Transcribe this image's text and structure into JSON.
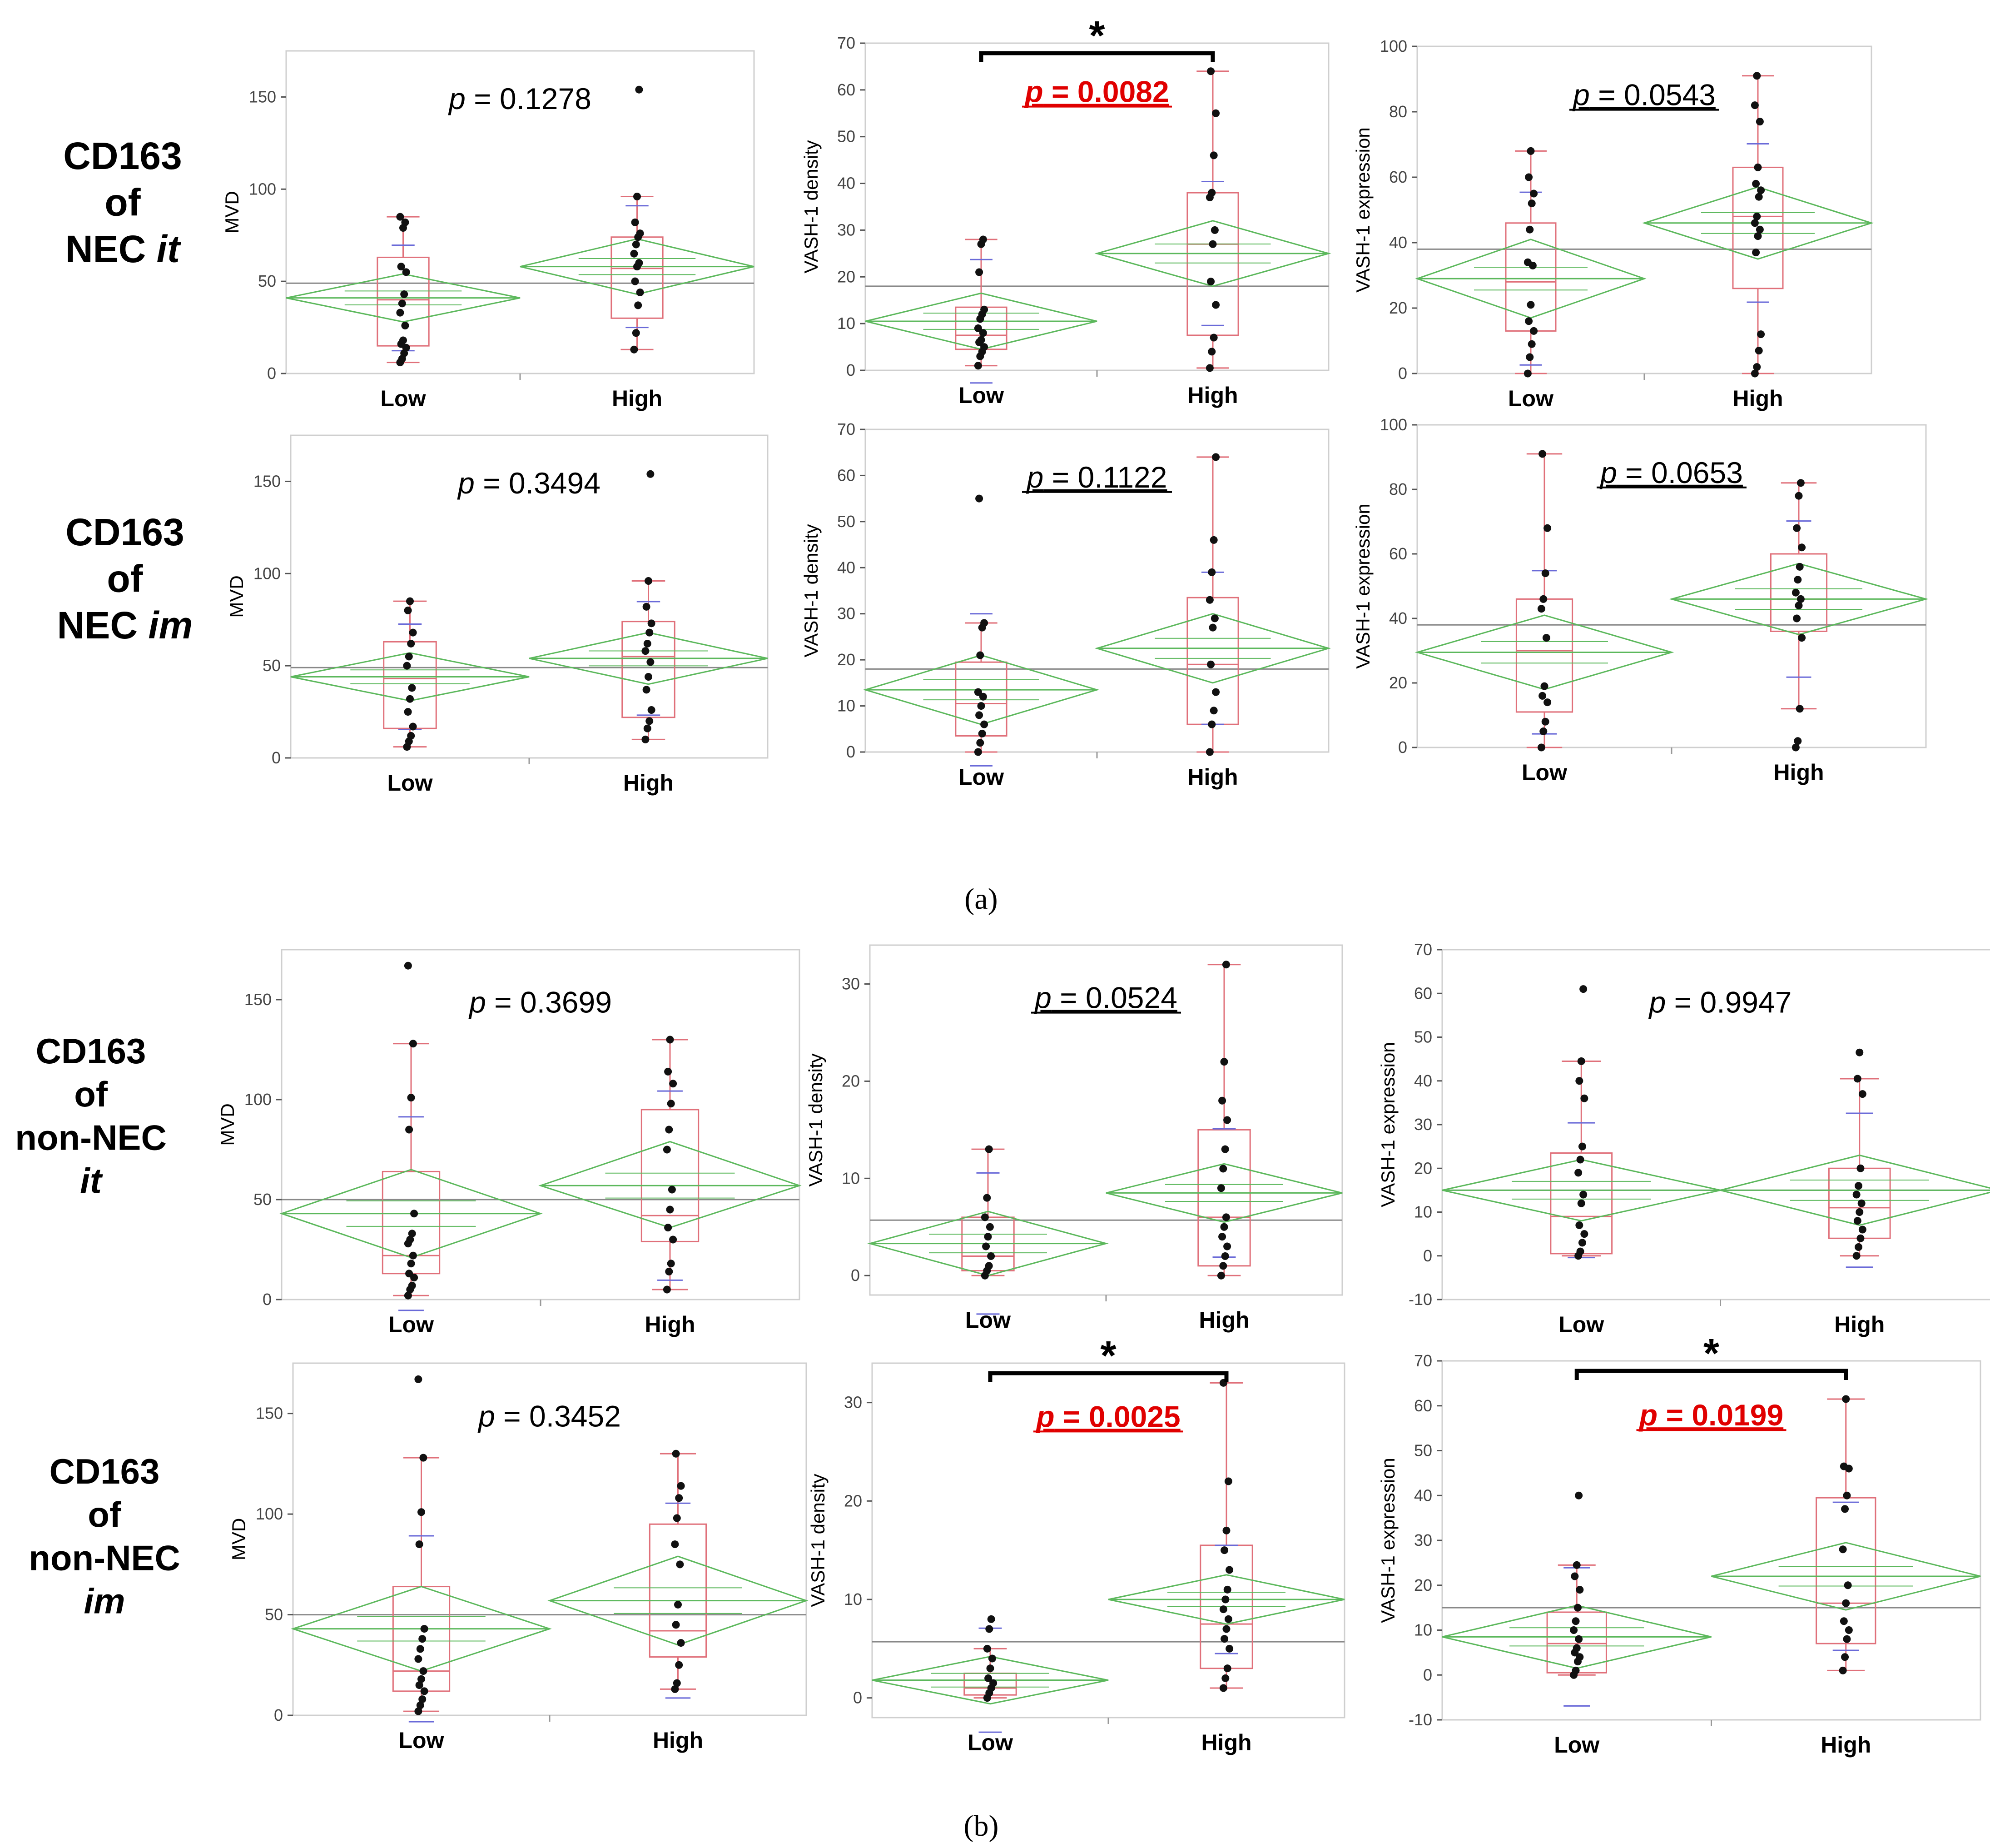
{
  "figure": {
    "panel_labels": [
      "(a)",
      "(b)"
    ],
    "colors": {
      "box": "#e0707a",
      "diamond": "#5cb85c",
      "grand_mean": "#888888",
      "whisker_cap": "#6a6ad8",
      "points": "#111111",
      "significant_p": "#e00000",
      "frame": "#cfcfcf",
      "text": "#000000"
    },
    "rows": [
      {
        "line1": "CD163",
        "line2": "of",
        "line3": "NEC",
        "line3_italic": "it"
      },
      {
        "line1": "CD163",
        "line2": "of",
        "line3": "NEC",
        "line3_italic": "im"
      },
      {
        "line1": "CD163",
        "line2": "of",
        "line3": "non-NEC",
        "line4_italic": "it"
      },
      {
        "line1": "CD163",
        "line2": "of",
        "line3": "non-NEC",
        "line4_italic": "im"
      }
    ]
  },
  "chart_data": [
    {
      "type": "box",
      "panel": "a",
      "row": 0,
      "col": 0,
      "ylabel": "MVD",
      "ylim": [
        0,
        175
      ],
      "yticks": [
        0,
        50,
        100,
        150
      ],
      "categories": [
        "Low",
        "High"
      ],
      "p_value": "0.1278",
      "significant": false,
      "underline": false,
      "star": false,
      "grand_mean": 49,
      "groups": [
        {
          "name": "Low",
          "mean": 41,
          "ci": [
            28,
            54
          ],
          "q1": 15,
          "median": 40,
          "q3": 63,
          "whisker": [
            6,
            85
          ],
          "points": [
            6,
            8,
            11,
            14,
            16,
            18,
            26,
            33,
            38,
            43,
            55,
            58,
            79,
            82,
            85
          ]
        },
        {
          "name": "High",
          "mean": 58,
          "ci": [
            43,
            73
          ],
          "q1": 30,
          "median": 57,
          "q3": 74,
          "whisker": [
            13,
            96
          ],
          "points": [
            13,
            22,
            37,
            44,
            50,
            58,
            60,
            65,
            70,
            74,
            76,
            82,
            96,
            154
          ]
        }
      ]
    },
    {
      "type": "box",
      "panel": "a",
      "row": 0,
      "col": 1,
      "ylabel": "VASH-1 density",
      "ylim": [
        0,
        70
      ],
      "yticks": [
        0,
        10,
        20,
        30,
        40,
        50,
        60,
        70
      ],
      "categories": [
        "Low",
        "High"
      ],
      "p_value": "0.0082",
      "significant": true,
      "underline": true,
      "star": true,
      "grand_mean": 18,
      "groups": [
        {
          "name": "Low",
          "mean": 10.5,
          "ci": [
            4.5,
            16.5
          ],
          "q1": 4.5,
          "median": 7.5,
          "q3": 13.5,
          "whisker": [
            1,
            28
          ],
          "points": [
            1,
            3,
            4,
            5,
            6,
            6.5,
            8,
            9,
            11,
            12,
            13,
            21,
            27,
            28
          ]
        },
        {
          "name": "High",
          "mean": 25,
          "ci": [
            18,
            32
          ],
          "q1": 7.5,
          "median": 27,
          "q3": 38,
          "whisker": [
            0.5,
            64
          ],
          "points": [
            0.5,
            4,
            7,
            14,
            19,
            27,
            30,
            37,
            38,
            46,
            55,
            64
          ]
        }
      ]
    },
    {
      "type": "box",
      "panel": "a",
      "row": 0,
      "col": 2,
      "ylabel": "VASH-1 expression",
      "ylim": [
        0,
        100
      ],
      "yticks": [
        0,
        20,
        40,
        60,
        80,
        100
      ],
      "categories": [
        "Low",
        "High"
      ],
      "p_value": "0.0543",
      "significant": false,
      "underline": true,
      "star": false,
      "grand_mean": 38,
      "groups": [
        {
          "name": "Low",
          "mean": 29,
          "ci": [
            17,
            41
          ],
          "q1": 13,
          "median": 28,
          "q3": 46,
          "whisker": [
            0,
            68
          ],
          "points": [
            0,
            5,
            9,
            13,
            16,
            21,
            33,
            34,
            44,
            52,
            55,
            60,
            68
          ]
        },
        {
          "name": "High",
          "mean": 46,
          "ci": [
            35,
            57
          ],
          "q1": 26,
          "median": 48,
          "q3": 63,
          "whisker": [
            0,
            91
          ],
          "points": [
            0,
            2,
            7,
            12,
            37,
            42,
            44,
            46,
            48,
            54,
            56,
            58,
            63,
            77,
            82,
            91
          ]
        }
      ]
    },
    {
      "type": "box",
      "panel": "a",
      "row": 1,
      "col": 0,
      "ylabel": "MVD",
      "ylim": [
        0,
        175
      ],
      "yticks": [
        0,
        50,
        100,
        150
      ],
      "categories": [
        "Low",
        "High"
      ],
      "p_value": "0.3494",
      "significant": false,
      "underline": false,
      "star": false,
      "grand_mean": 49,
      "groups": [
        {
          "name": "Low",
          "mean": 44,
          "ci": [
            31,
            57
          ],
          "q1": 16,
          "median": 43,
          "q3": 63,
          "whisker": [
            6,
            85
          ],
          "points": [
            6,
            9,
            12,
            17,
            25,
            32,
            38,
            50,
            55,
            62,
            68,
            80,
            85
          ]
        },
        {
          "name": "High",
          "mean": 54,
          "ci": [
            40,
            68
          ],
          "q1": 22,
          "median": 55,
          "q3": 74,
          "whisker": [
            10,
            96
          ],
          "points": [
            10,
            16,
            20,
            26,
            37,
            44,
            52,
            58,
            62,
            68,
            73,
            82,
            96,
            154
          ]
        }
      ]
    },
    {
      "type": "box",
      "panel": "a",
      "row": 1,
      "col": 1,
      "ylabel": "VASH-1 density",
      "ylim": [
        0,
        70
      ],
      "yticks": [
        0,
        10,
        20,
        30,
        40,
        50,
        60,
        70
      ],
      "categories": [
        "Low",
        "High"
      ],
      "p_value": "0.1122",
      "significant": false,
      "underline": true,
      "star": false,
      "grand_mean": 18,
      "groups": [
        {
          "name": "Low",
          "mean": 13.5,
          "ci": [
            6,
            21
          ],
          "q1": 3.5,
          "median": 10.5,
          "q3": 19.5,
          "whisker": [
            0,
            28
          ],
          "points": [
            0,
            2,
            4,
            6,
            8,
            10,
            12,
            13,
            21,
            27,
            28,
            55
          ]
        },
        {
          "name": "High",
          "mean": 22.5,
          "ci": [
            15,
            30
          ],
          "q1": 6,
          "median": 19,
          "q3": 33.5,
          "whisker": [
            0,
            64
          ],
          "points": [
            0,
            6,
            9,
            13,
            19,
            27,
            29,
            33,
            39,
            46,
            64
          ]
        }
      ]
    },
    {
      "type": "box",
      "panel": "a",
      "row": 1,
      "col": 2,
      "ylabel": "VASH-1 expression",
      "ylim": [
        0,
        100
      ],
      "yticks": [
        0,
        20,
        40,
        60,
        80,
        100
      ],
      "categories": [
        "Low",
        "High"
      ],
      "p_value": "0.0653",
      "significant": false,
      "underline": true,
      "star": false,
      "grand_mean": 38,
      "groups": [
        {
          "name": "Low",
          "mean": 29.5,
          "ci": [
            18,
            41
          ],
          "q1": 11,
          "median": 30,
          "q3": 46,
          "whisker": [
            0,
            91
          ],
          "points": [
            0,
            5,
            8,
            14,
            16,
            19,
            34,
            43,
            46,
            54,
            68,
            91
          ]
        },
        {
          "name": "High",
          "mean": 46,
          "ci": [
            35,
            57
          ],
          "q1": 36,
          "median": 46,
          "q3": 60,
          "whisker": [
            12,
            82
          ],
          "points": [
            0,
            2,
            12,
            34,
            40,
            44,
            46,
            48,
            52,
            56,
            62,
            68,
            78,
            82
          ]
        }
      ]
    },
    {
      "type": "box",
      "panel": "b",
      "row": 2,
      "col": 0,
      "ylabel": "MVD",
      "ylim": [
        0,
        175
      ],
      "yticks": [
        0,
        50,
        100,
        150
      ],
      "categories": [
        "Low",
        "High"
      ],
      "p_value": "0.3699",
      "significant": false,
      "underline": false,
      "star": false,
      "grand_mean": 50,
      "groups": [
        {
          "name": "Low",
          "mean": 43,
          "ci": [
            21,
            65
          ],
          "q1": 13,
          "median": 22,
          "q3": 64,
          "whisker": [
            2,
            128
          ],
          "points": [
            2,
            5,
            7,
            11,
            13,
            18,
            22,
            28,
            30,
            33,
            43,
            85,
            101,
            128,
            167
          ]
        },
        {
          "name": "High",
          "mean": 57,
          "ci": [
            36,
            79
          ],
          "q1": 29,
          "median": 42,
          "q3": 95,
          "whisker": [
            5,
            130
          ],
          "points": [
            5,
            14,
            18,
            30,
            36,
            45,
            55,
            75,
            85,
            98,
            108,
            114,
            130
          ]
        }
      ]
    },
    {
      "type": "box",
      "panel": "b",
      "row": 2,
      "col": 1,
      "ylabel": "VASH-1 density",
      "ylim": [
        -2,
        34
      ],
      "yticks": [
        0,
        10,
        20,
        30
      ],
      "categories": [
        "Low",
        "High"
      ],
      "p_value": "0.0524",
      "significant": false,
      "underline": true,
      "star": false,
      "grand_mean": 5.7,
      "groups": [
        {
          "name": "Low",
          "mean": 3.3,
          "ci": [
            0,
            6.6
          ],
          "q1": 0.5,
          "median": 2,
          "q3": 6,
          "whisker": [
            0,
            13
          ],
          "points": [
            0,
            0.5,
            1,
            2,
            3,
            4,
            5,
            6,
            8,
            13
          ]
        },
        {
          "name": "High",
          "mean": 8.5,
          "ci": [
            5.5,
            11.5
          ],
          "q1": 1,
          "median": 6,
          "q3": 15,
          "whisker": [
            0,
            32
          ],
          "points": [
            0,
            1,
            2,
            3,
            4,
            5,
            6,
            9,
            11,
            13,
            16,
            18,
            22,
            32
          ]
        }
      ]
    },
    {
      "type": "box",
      "panel": "b",
      "row": 2,
      "col": 2,
      "ylabel": "VASH-1 expression",
      "ylim": [
        -10,
        70
      ],
      "yticks": [
        -10,
        0,
        10,
        20,
        30,
        40,
        50,
        60,
        70
      ],
      "categories": [
        "Low",
        "High"
      ],
      "p_value": "0.9947",
      "significant": false,
      "underline": false,
      "star": false,
      "grand_mean": 15,
      "groups": [
        {
          "name": "Low",
          "mean": 15,
          "ci": [
            8,
            22
          ],
          "q1": 0.5,
          "median": 9,
          "q3": 23.5,
          "whisker": [
            0,
            44.5
          ],
          "points": [
            0,
            1,
            3,
            5,
            7,
            12,
            14,
            19,
            22,
            25,
            36,
            40,
            44.5,
            61
          ]
        },
        {
          "name": "High",
          "mean": 15,
          "ci": [
            7,
            23
          ],
          "q1": 4,
          "median": 11,
          "q3": 20,
          "whisker": [
            0,
            40.5
          ],
          "points": [
            0,
            2,
            4,
            6,
            8,
            10,
            12,
            14,
            16,
            20,
            37,
            40.5,
            46.5
          ]
        }
      ]
    },
    {
      "type": "box",
      "panel": "b",
      "row": 3,
      "col": 0,
      "ylabel": "MVD",
      "ylim": [
        0,
        175
      ],
      "yticks": [
        0,
        50,
        100,
        150
      ],
      "categories": [
        "Low",
        "High"
      ],
      "p_value": "0.3452",
      "significant": false,
      "underline": false,
      "star": false,
      "grand_mean": 50,
      "groups": [
        {
          "name": "Low",
          "mean": 43,
          "ci": [
            22,
            64
          ],
          "q1": 12,
          "median": 22,
          "q3": 64,
          "whisker": [
            2,
            128
          ],
          "points": [
            2,
            5,
            8,
            12,
            15,
            18,
            22,
            28,
            33,
            38,
            43,
            85,
            101,
            128,
            167
          ]
        },
        {
          "name": "High",
          "mean": 57,
          "ci": [
            35,
            79
          ],
          "q1": 29,
          "median": 42,
          "q3": 95,
          "whisker": [
            13,
            130
          ],
          "points": [
            13,
            16,
            25,
            36,
            45,
            55,
            75,
            85,
            98,
            108,
            114,
            130
          ]
        }
      ]
    },
    {
      "type": "box",
      "panel": "b",
      "row": 3,
      "col": 1,
      "ylabel": "VASH-1 density",
      "ylim": [
        -2,
        34
      ],
      "yticks": [
        0,
        10,
        20,
        30
      ],
      "categories": [
        "Low",
        "High"
      ],
      "p_value": "0.0025",
      "significant": true,
      "underline": true,
      "star": true,
      "grand_mean": 5.7,
      "groups": [
        {
          "name": "Low",
          "mean": 1.8,
          "ci": [
            -0.6,
            4.2
          ],
          "q1": 0.3,
          "median": 1,
          "q3": 2.5,
          "whisker": [
            0,
            5
          ],
          "points": [
            0,
            0.5,
            1,
            1.5,
            2,
            3,
            4,
            5,
            7,
            8
          ]
        },
        {
          "name": "High",
          "mean": 10,
          "ci": [
            7.5,
            12.5
          ],
          "q1": 3,
          "median": 7.5,
          "q3": 15.5,
          "whisker": [
            1,
            32
          ],
          "points": [
            1,
            2,
            3,
            5,
            6,
            7,
            8,
            9,
            10,
            11,
            13,
            15,
            17,
            22,
            32
          ]
        }
      ]
    },
    {
      "type": "box",
      "panel": "b",
      "row": 3,
      "col": 2,
      "ylabel": "VASH-1 expression",
      "ylim": [
        -10,
        70
      ],
      "yticks": [
        -10,
        0,
        10,
        20,
        30,
        40,
        50,
        60,
        70
      ],
      "categories": [
        "Low",
        "High"
      ],
      "p_value": "0.0199",
      "significant": true,
      "underline": true,
      "star": true,
      "grand_mean": 15,
      "groups": [
        {
          "name": "Low",
          "mean": 8.5,
          "ci": [
            1.5,
            15.5
          ],
          "q1": 0.5,
          "median": 7,
          "q3": 14,
          "whisker": [
            0,
            24.5
          ],
          "points": [
            0,
            1,
            3,
            4,
            5,
            6,
            8,
            10,
            12,
            15,
            19,
            22,
            24.5,
            40
          ]
        },
        {
          "name": "High",
          "mean": 22,
          "ci": [
            14.5,
            29.5
          ],
          "q1": 7,
          "median": 16,
          "q3": 39.5,
          "whisker": [
            1,
            61.5
          ],
          "points": [
            1,
            4,
            8,
            10,
            12,
            16,
            20,
            28,
            37,
            40,
            46,
            46.5,
            61.5
          ]
        }
      ]
    }
  ]
}
